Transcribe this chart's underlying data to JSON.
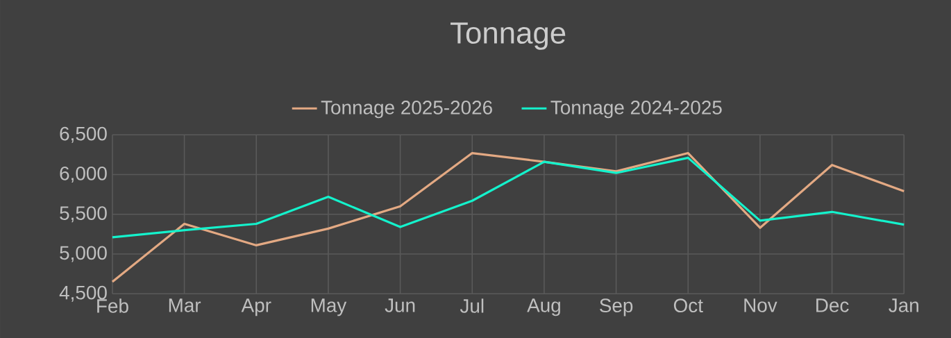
{
  "chart_data": {
    "type": "line",
    "title": "Tonnage",
    "categories": [
      "Feb",
      "Mar",
      "Apr",
      "May",
      "Jun",
      "Jul",
      "Aug",
      "Sep",
      "Oct",
      "Nov",
      "Dec",
      "Jan"
    ],
    "series": [
      {
        "name": "Tonnage 2025-2026",
        "color": "#e3a983",
        "values": [
          4650,
          5380,
          5110,
          5320,
          5600,
          6270,
          6160,
          6040,
          6270,
          5330,
          6120,
          5790
        ]
      },
      {
        "name": "Tonnage 2024-2025",
        "color": "#14f2cc",
        "values": [
          5210,
          5300,
          5380,
          5720,
          5340,
          5670,
          6160,
          6020,
          6210,
          5420,
          5530,
          5370
        ]
      }
    ],
    "ylim": [
      4500,
      6500
    ],
    "yticks": [
      {
        "value": 4500,
        "label": "4,500"
      },
      {
        "value": 5000,
        "label": "5,000"
      },
      {
        "value": 5500,
        "label": "5,500"
      },
      {
        "value": 6000,
        "label": "6,000"
      },
      {
        "value": 6500,
        "label": "6,500"
      }
    ],
    "grid": true,
    "legend": "top",
    "marker": "none",
    "line_style": "solid"
  }
}
